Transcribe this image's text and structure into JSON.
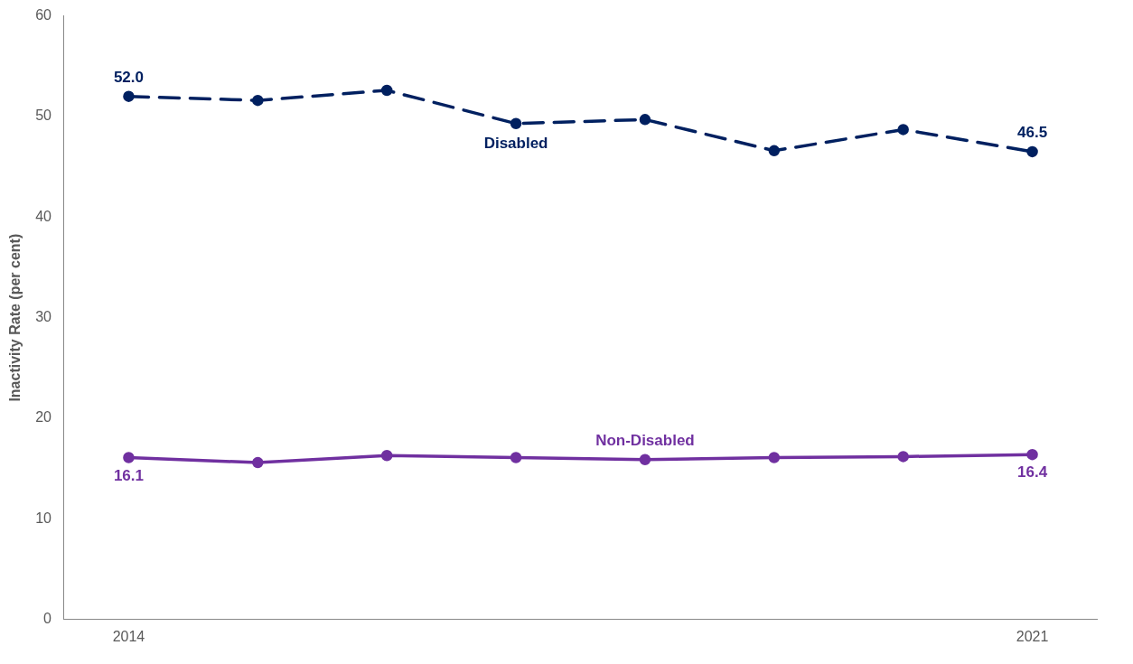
{
  "chart_data": {
    "type": "line",
    "ylabel": "Inactivity Rate (per cent)",
    "categories": [
      "2014",
      null,
      null,
      null,
      null,
      null,
      null,
      "2021"
    ],
    "ylim": [
      0,
      60
    ],
    "yticks": [
      0,
      10,
      20,
      30,
      40,
      50,
      60
    ],
    "grid": false,
    "legend": false,
    "marker": "circle",
    "series": [
      {
        "name": "Disabled",
        "color": "#002060",
        "line_style": "dashed",
        "values": [
          52.0,
          51.6,
          52.6,
          49.3,
          49.7,
          46.6,
          48.7,
          46.5
        ],
        "value_labels": [
          "52.0",
          null,
          null,
          null,
          null,
          null,
          null,
          "46.5"
        ]
      },
      {
        "name": "Non-Disabled",
        "color": "#7030a0",
        "line_style": "solid",
        "values": [
          16.1,
          15.6,
          16.3,
          16.1,
          15.9,
          16.1,
          16.2,
          16.4
        ],
        "value_labels": [
          "16.1",
          null,
          null,
          null,
          null,
          null,
          null,
          "16.4"
        ]
      }
    ]
  }
}
